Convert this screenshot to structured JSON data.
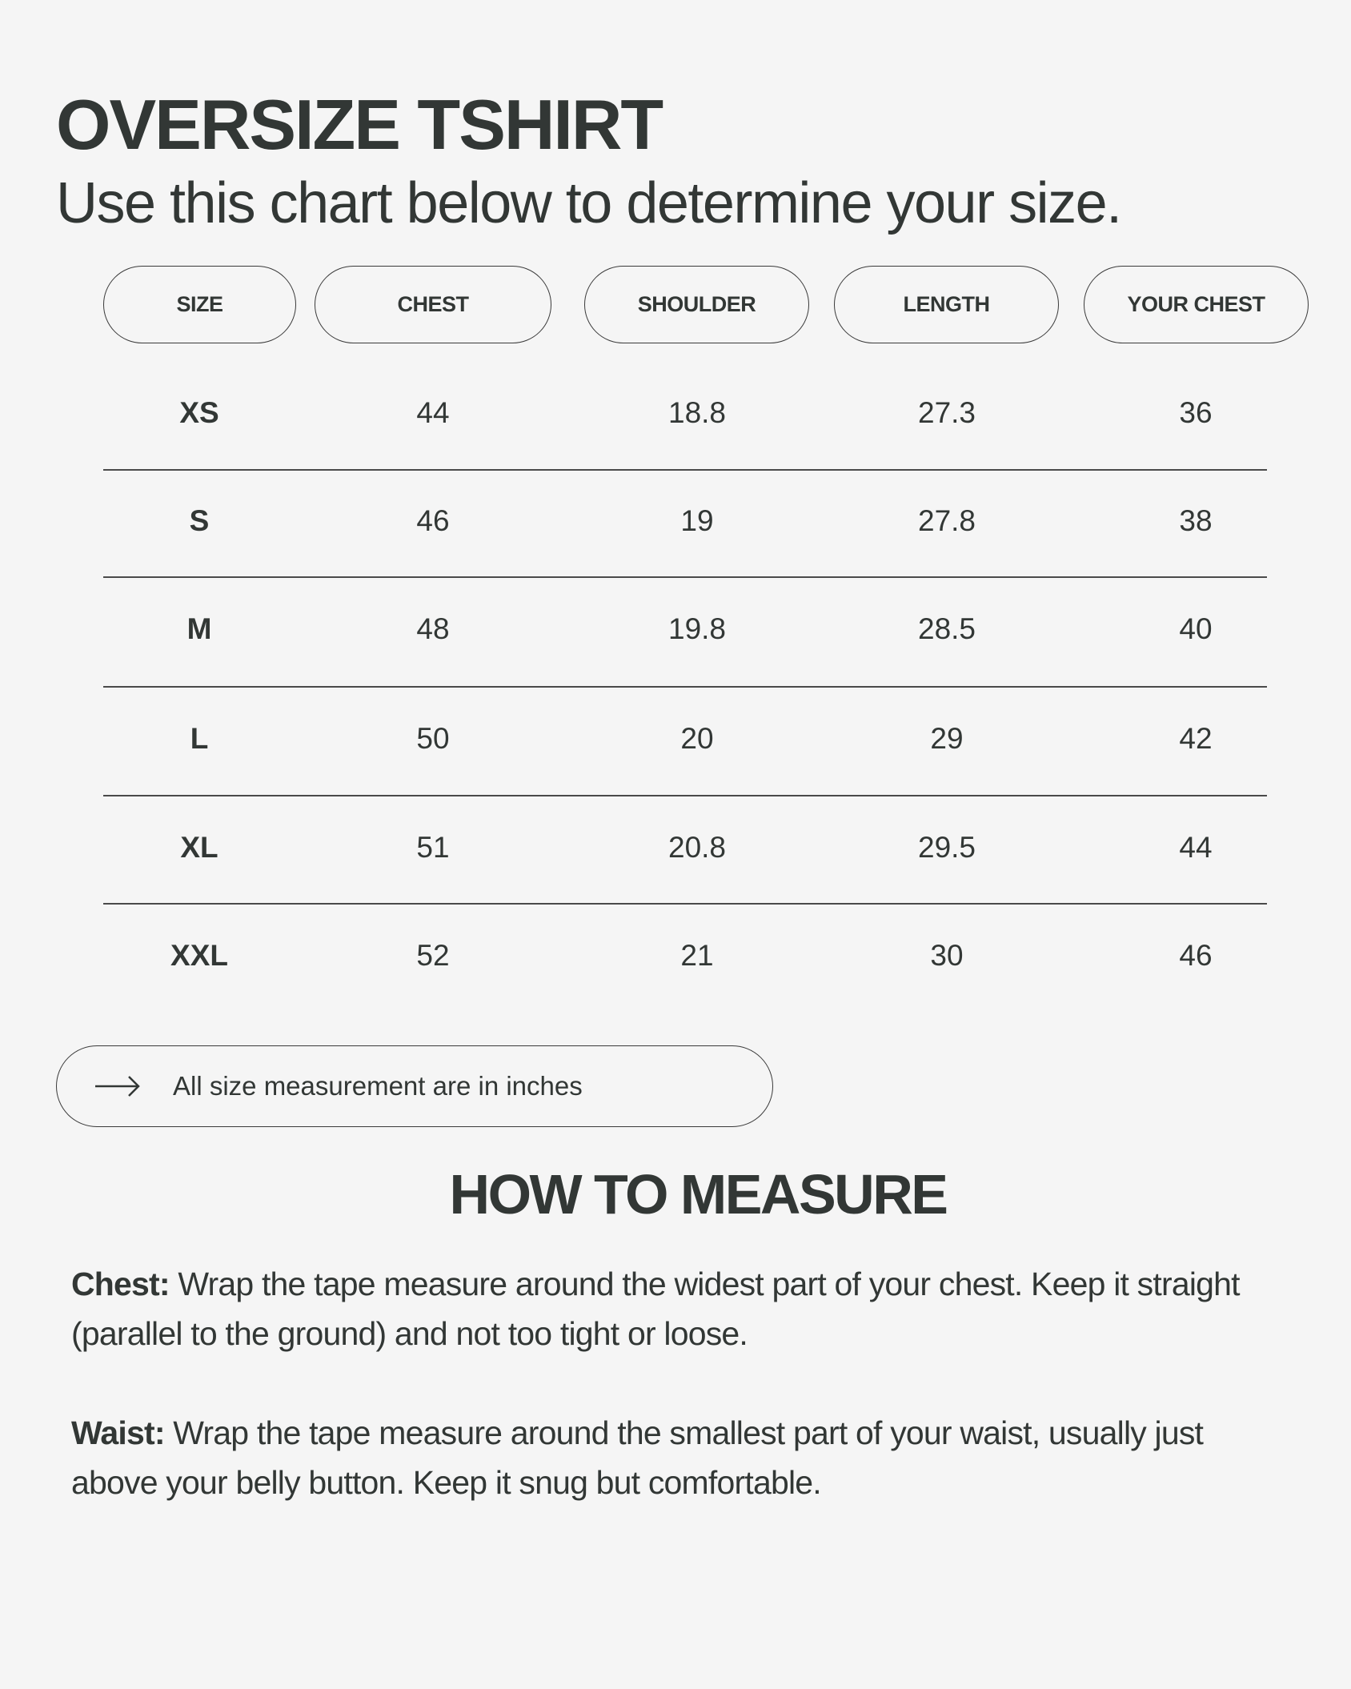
{
  "header": {
    "title": "OVERSIZE TSHIRT",
    "subtitle": "Use this chart below to determine your size."
  },
  "table": {
    "columns": [
      "SIZE",
      "CHEST",
      "SHOULDER",
      "LENGTH",
      "YOUR CHEST"
    ],
    "rows": [
      [
        "XS",
        "44",
        "18.8",
        "27.3",
        "36"
      ],
      [
        "S",
        "46",
        "19",
        "27.8",
        "38"
      ],
      [
        "M",
        "48",
        "19.8",
        "28.5",
        "40"
      ],
      [
        "L",
        "50",
        "20",
        "29",
        "42"
      ],
      [
        "XL",
        "51",
        "20.8",
        "29.5",
        "44"
      ],
      [
        "XXL",
        "52",
        "21",
        "30",
        "46"
      ]
    ]
  },
  "note": {
    "icon": "arrow-right-icon",
    "text": "All size measurement are in inches"
  },
  "how_to_measure": {
    "title": "HOW TO MEASURE",
    "items": [
      {
        "label": "Chest:",
        "text": " Wrap the tape measure around the widest part of your chest. Keep it straight (parallel to the ground) and not too tight or loose."
      },
      {
        "label": "Waist:",
        "text": " Wrap the tape measure around the smallest part of your waist, usually just above your belly button. Keep it snug but comfortable."
      }
    ]
  },
  "colors": {
    "background": "#f5f5f5",
    "text": "#323735"
  }
}
